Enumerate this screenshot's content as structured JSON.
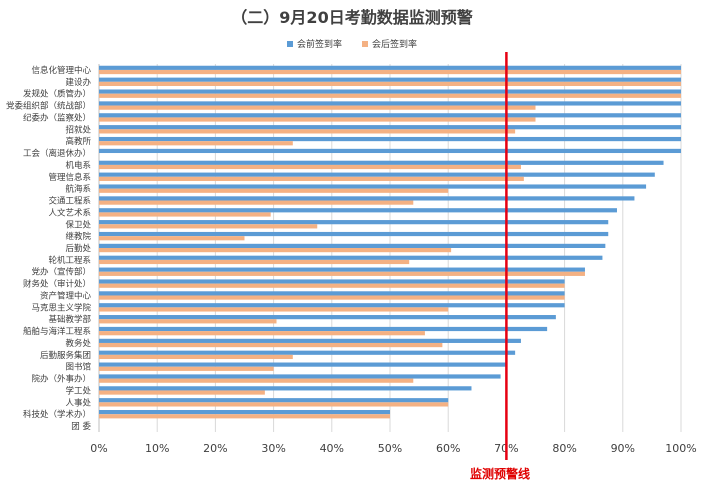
{
  "title": "（二）9月20日考勤数据监测预警",
  "warning_label": "监测预警线",
  "colors": {
    "before": "#5b9bd5",
    "after": "#f4b183",
    "warning": "#e60012",
    "grid": "#d9d9d9",
    "text": "#404040"
  },
  "chart_data": {
    "type": "bar",
    "orientation": "horizontal",
    "title": "（二）9月20日考勤数据监测预警",
    "xlabel": "",
    "ylabel": "",
    "xlim": [
      0,
      100
    ],
    "x_ticks": [
      "0%",
      "10%",
      "20%",
      "30%",
      "40%",
      "50%",
      "60%",
      "70%",
      "80%",
      "90%",
      "100%"
    ],
    "grid": true,
    "legend_position": "top",
    "warning_line": {
      "value": 70,
      "label": "监测预警线"
    },
    "categories": [
      "信息化管理中心",
      "建设办",
      "发规处（质管办）",
      "党委组织部（统战部）",
      "纪委办（监察处）",
      "招就处",
      "高教所",
      "工会（离退休办）",
      "机电系",
      "管理信息系",
      "航海系",
      "交通工程系",
      "人文艺术系",
      "保卫处",
      "继教院",
      "后勤处",
      "轮机工程系",
      "党办（宣传部）",
      "财务处（审计处）",
      "资产管理中心",
      "马克思主义学院",
      "基础教学部",
      "船舶与海洋工程系",
      "教务处",
      "后勤服务集团",
      "图书馆",
      "院办（外事办）",
      "学工处",
      "人事处",
      "科技处（学术办）",
      "团 委"
    ],
    "series": [
      {
        "name": "会前签到率",
        "values": [
          100,
          100,
          100,
          100,
          100,
          100,
          100,
          100,
          97,
          95.5,
          94,
          92,
          89,
          87.5,
          87.5,
          87,
          86.5,
          83.5,
          80,
          80,
          80,
          78.5,
          77,
          72.5,
          71.5,
          70,
          69,
          64,
          60,
          50,
          0
        ]
      },
      {
        "name": "会后签到率",
        "values": [
          100,
          100,
          100,
          75,
          75,
          71.5,
          33.3,
          0,
          72.5,
          73,
          60,
          54,
          29.5,
          37.5,
          25,
          60.5,
          53.3,
          83.5,
          80,
          80,
          60,
          30.5,
          56,
          59,
          33.3,
          30,
          54,
          28.5,
          60,
          50,
          0
        ]
      }
    ]
  }
}
